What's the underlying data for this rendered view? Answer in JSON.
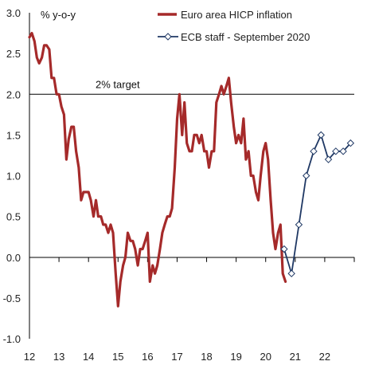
{
  "chart_data": {
    "type": "line",
    "ylabel": "% y-o-y",
    "ylim": [
      -1.0,
      3.0
    ],
    "yticks": [
      "3.0",
      "2.5",
      "2.0",
      "1.5",
      "1.0",
      "0.5",
      "0.0",
      "-0.5",
      "-1.0"
    ],
    "xlim": [
      2012.0,
      2023.0
    ],
    "xticks": [
      "12",
      "13",
      "14",
      "15",
      "16",
      "17",
      "18",
      "19",
      "20",
      "21",
      "22"
    ],
    "grid": false,
    "legend_position": "top-right",
    "target": {
      "value": 2.0,
      "label": "2% target"
    },
    "series": [
      {
        "name": "Euro area HICP inflation",
        "color": "#a52a2a",
        "marker": "none",
        "x": [
          2012.0,
          2012.08,
          2012.17,
          2012.25,
          2012.33,
          2012.42,
          2012.5,
          2012.58,
          2012.67,
          2012.75,
          2012.83,
          2012.92,
          2013.0,
          2013.08,
          2013.17,
          2013.25,
          2013.33,
          2013.42,
          2013.5,
          2013.58,
          2013.67,
          2013.75,
          2013.83,
          2013.92,
          2014.0,
          2014.08,
          2014.17,
          2014.25,
          2014.33,
          2014.42,
          2014.5,
          2014.58,
          2014.67,
          2014.75,
          2014.83,
          2014.92,
          2015.0,
          2015.08,
          2015.17,
          2015.25,
          2015.33,
          2015.42,
          2015.5,
          2015.58,
          2015.67,
          2015.75,
          2015.83,
          2015.92,
          2016.0,
          2016.08,
          2016.17,
          2016.25,
          2016.33,
          2016.42,
          2016.5,
          2016.58,
          2016.67,
          2016.75,
          2016.83,
          2016.92,
          2017.0,
          2017.08,
          2017.17,
          2017.25,
          2017.33,
          2017.42,
          2017.5,
          2017.58,
          2017.67,
          2017.75,
          2017.83,
          2017.92,
          2018.0,
          2018.08,
          2018.17,
          2018.25,
          2018.33,
          2018.42,
          2018.5,
          2018.58,
          2018.67,
          2018.75,
          2018.83,
          2018.92,
          2019.0,
          2019.08,
          2019.17,
          2019.25,
          2019.33,
          2019.42,
          2019.5,
          2019.58,
          2019.67,
          2019.75,
          2019.83,
          2019.92,
          2020.0,
          2020.08,
          2020.17,
          2020.25,
          2020.33,
          2020.42,
          2020.5,
          2020.58,
          2020.67
        ],
        "y": [
          2.7,
          2.75,
          2.65,
          2.45,
          2.38,
          2.45,
          2.6,
          2.6,
          2.55,
          2.2,
          2.2,
          2.0,
          2.0,
          1.85,
          1.75,
          1.2,
          1.45,
          1.6,
          1.6,
          1.3,
          1.1,
          0.7,
          0.8,
          0.8,
          0.8,
          0.7,
          0.5,
          0.7,
          0.5,
          0.5,
          0.4,
          0.4,
          0.3,
          0.4,
          0.3,
          -0.2,
          -0.6,
          -0.3,
          -0.1,
          0.0,
          0.3,
          0.2,
          0.2,
          0.1,
          -0.1,
          0.1,
          0.1,
          0.2,
          0.3,
          -0.3,
          -0.1,
          -0.2,
          -0.1,
          0.1,
          0.3,
          0.4,
          0.5,
          0.5,
          0.6,
          1.1,
          1.7,
          2.0,
          1.5,
          1.9,
          1.4,
          1.3,
          1.3,
          1.5,
          1.5,
          1.4,
          1.5,
          1.3,
          1.3,
          1.1,
          1.3,
          1.3,
          1.9,
          2.0,
          2.1,
          2.0,
          2.1,
          2.2,
          1.9,
          1.6,
          1.4,
          1.5,
          1.4,
          1.7,
          1.2,
          1.3,
          1.0,
          1.0,
          0.8,
          0.7,
          1.0,
          1.3,
          1.4,
          1.2,
          0.7,
          0.3,
          0.1,
          0.3,
          0.4,
          -0.2,
          -0.3
        ]
      },
      {
        "name": "ECB staff - September 2020",
        "color": "#1f3864",
        "marker": "diamond",
        "x": [
          2020.625,
          2020.875,
          2021.125,
          2021.375,
          2021.625,
          2021.875,
          2022.125,
          2022.375,
          2022.625,
          2022.875
        ],
        "y": [
          0.1,
          -0.2,
          0.4,
          1.0,
          1.3,
          1.5,
          1.2,
          1.3,
          1.3,
          1.4
        ]
      }
    ]
  }
}
